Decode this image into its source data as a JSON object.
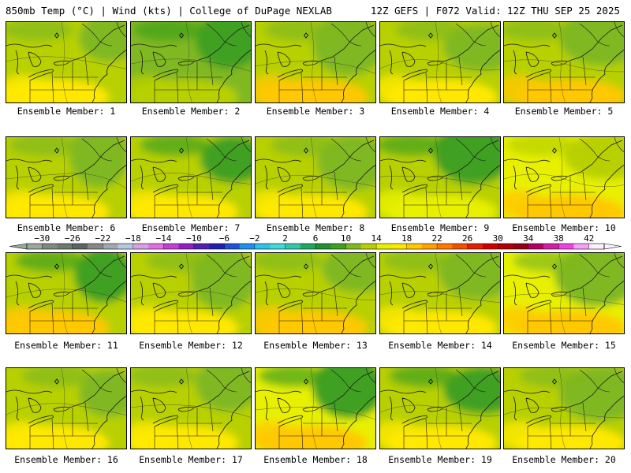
{
  "header": {
    "title_left": "850mb Temp (°C) | Wind (kts) | College of DuPage NEXLAB",
    "title_right": "12Z GEFS | F072 Valid: 12Z THU SEP 25 2025"
  },
  "members": [
    {
      "label": "Ensemble Member: 1"
    },
    {
      "label": "Ensemble Member: 2"
    },
    {
      "label": "Ensemble Member: 3"
    },
    {
      "label": "Ensemble Member: 4"
    },
    {
      "label": "Ensemble Member: 5"
    },
    {
      "label": "Ensemble Member: 6"
    },
    {
      "label": "Ensemble Member: 7"
    },
    {
      "label": "Ensemble Member: 8"
    },
    {
      "label": "Ensemble Member: 9"
    },
    {
      "label": "Ensemble Member: 10"
    },
    {
      "label": "Ensemble Member: 11"
    },
    {
      "label": "Ensemble Member: 12"
    },
    {
      "label": "Ensemble Member: 13"
    },
    {
      "label": "Ensemble Member: 14"
    },
    {
      "label": "Ensemble Member: 15"
    },
    {
      "label": "Ensemble Member: 16"
    },
    {
      "label": "Ensemble Member: 17"
    },
    {
      "label": "Ensemble Member: 18"
    },
    {
      "label": "Ensemble Member: 19"
    },
    {
      "label": "Ensemble Member: 20"
    }
  ],
  "colorbar": {
    "tick_labels": [
      "-30",
      "-26",
      "-22",
      "-18",
      "-14",
      "-10",
      "-6",
      "-2",
      "2",
      "6",
      "10",
      "14",
      "18",
      "22",
      "26",
      "30",
      "34",
      "38",
      "42"
    ],
    "colors": [
      "#9aa8a0",
      "#7c8a80",
      "#6c7a70",
      "#5c6660",
      "#888888",
      "#a0a8b0",
      "#b8c8dc",
      "#d8a0e0",
      "#e070e0",
      "#c040d0",
      "#9020c0",
      "#5020b0",
      "#2020b0",
      "#2050d8",
      "#2090e8",
      "#30c0e8",
      "#40d8d8",
      "#30c8a8",
      "#20a860",
      "#209030",
      "#40a020",
      "#80b820",
      "#b8d000",
      "#e8f000",
      "#ffe800",
      "#ffc800",
      "#ffa000",
      "#ff7800",
      "#f05000",
      "#e02000",
      "#d00000",
      "#b00000",
      "#900010",
      "#b00060",
      "#d020a0",
      "#f040e0",
      "#f8a0f8",
      "#fff0ff"
    ]
  }
}
